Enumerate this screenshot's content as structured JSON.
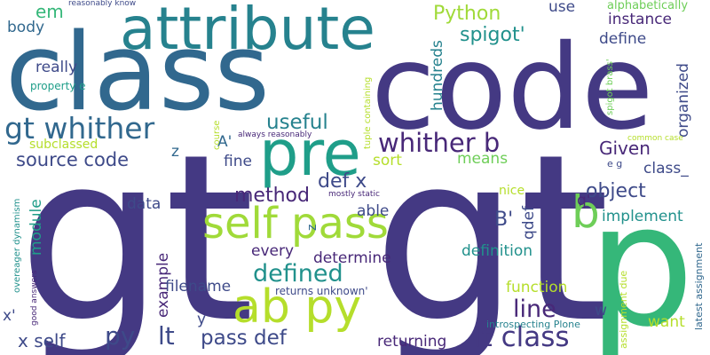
{
  "palette": {
    "dark_purple": "#482878",
    "indigo": "#443983",
    "teal_blue": "#31688e",
    "slate": "#3e4a89",
    "teal": "#26828e",
    "teal_green": "#21918c",
    "sea_green": "#1f9e89",
    "green": "#35b779",
    "bright_green": "#3dbc74",
    "light_green": "#6ece58",
    "lime": "#b5de2b",
    "yellow_green": "#a0da39"
  },
  "words": [
    {
      "text": "gt",
      "color": "#443983"
    },
    {
      "text": "gt",
      "color": "#443983"
    },
    {
      "text": "code",
      "color": "#443983"
    },
    {
      "text": "class",
      "color": "#31688e"
    },
    {
      "text": "p",
      "color": "#35b779"
    },
    {
      "text": "attribute",
      "color": "#26828e"
    },
    {
      "text": "pre",
      "color": "#1f9e89"
    },
    {
      "text": "ab py",
      "color": "#b5de2b"
    },
    {
      "text": "self pass",
      "color": "#a0da39"
    },
    {
      "text": "b",
      "color": "#6ece58"
    },
    {
      "text": "gt whither",
      "color": "#31688e"
    },
    {
      "text": "whither b",
      "color": "#482878"
    },
    {
      "text": "lt class",
      "color": "#443983"
    },
    {
      "text": "line",
      "color": "#482878"
    },
    {
      "text": "source code",
      "color": "#3e4a89"
    },
    {
      "text": "py",
      "color": "#3e4a89"
    },
    {
      "text": "lt",
      "color": "#3e4a89"
    },
    {
      "text": "pass def",
      "color": "#3e4a89"
    },
    {
      "text": "x self",
      "color": "#3e4a89"
    },
    {
      "text": "object",
      "color": "#3e4a89"
    },
    {
      "text": "defined",
      "color": "#21918c"
    },
    {
      "text": "method",
      "color": "#482878"
    },
    {
      "text": "useful",
      "color": "#26828e"
    },
    {
      "text": "def x",
      "color": "#3e4a89"
    },
    {
      "text": "Python",
      "color": "#a0da39"
    },
    {
      "text": "spigot'",
      "color": "#21918c"
    },
    {
      "text": "B'",
      "color": "#3e4a89"
    },
    {
      "text": "Given",
      "color": "#482878"
    },
    {
      "text": "define",
      "color": "#3e4a89"
    },
    {
      "text": "instance",
      "color": "#482878"
    },
    {
      "text": "organized",
      "color": "#3e4a89"
    },
    {
      "text": "em",
      "color": "#35b779"
    },
    {
      "text": "use",
      "color": "#3e4a89"
    },
    {
      "text": "body",
      "color": "#31688e"
    },
    {
      "text": "really",
      "color": "#3e4a89"
    },
    {
      "text": "hundreds",
      "color": "#26828e"
    },
    {
      "text": "sort",
      "color": "#b5de2b"
    },
    {
      "text": "means",
      "color": "#6ece58"
    },
    {
      "text": "fine",
      "color": "#3e4a89"
    },
    {
      "text": "A'",
      "color": "#31688e"
    },
    {
      "text": "z",
      "color": "#31688e"
    },
    {
      "text": "class_",
      "color": "#3e4a89"
    },
    {
      "text": "implement",
      "color": "#21918c"
    },
    {
      "text": "q'",
      "color": "#482878"
    },
    {
      "text": "data",
      "color": "#3e4a89"
    },
    {
      "text": "able",
      "color": "#3e4a89"
    },
    {
      "text": "qdef",
      "color": "#3e4a89"
    },
    {
      "text": "determine",
      "color": "#482878"
    },
    {
      "text": "every",
      "color": "#482878"
    },
    {
      "text": "definition",
      "color": "#21918c"
    },
    {
      "text": "module",
      "color": "#1f9e89"
    },
    {
      "text": "example",
      "color": "#482878"
    },
    {
      "text": "filename",
      "color": "#3e4a89"
    },
    {
      "text": "function",
      "color": "#b5de2b"
    },
    {
      "text": "want",
      "color": "#b5de2b"
    },
    {
      "text": "returning",
      "color": "#482878"
    },
    {
      "text": "y",
      "color": "#3e4a89"
    },
    {
      "text": "x'",
      "color": "#3e4a89"
    },
    {
      "text": "w",
      "color": "#3e4a89"
    },
    {
      "text": "subclassed",
      "color": "#b5de2b"
    },
    {
      "text": "nice",
      "color": "#b5de2b"
    },
    {
      "text": "z",
      "color": "#31688e"
    },
    {
      "text": "alphabetically",
      "color": "#6ece58"
    },
    {
      "text": "property e",
      "color": "#1f9e89"
    },
    {
      "text": "e g",
      "color": "#3e4a89"
    },
    {
      "text": "reasonably know",
      "color": "#3e4a89"
    },
    {
      "text": "tuple containing",
      "color": "#b5de2b"
    },
    {
      "text": "spigot brass'",
      "color": "#6ece58"
    },
    {
      "text": "course",
      "color": "#b5de2b"
    },
    {
      "text": "always reasonably",
      "color": "#482878"
    },
    {
      "text": "mostly static",
      "color": "#482878"
    },
    {
      "text": "common case",
      "color": "#b5de2b"
    },
    {
      "text": "overeager dynamism",
      "color": "#21918c"
    },
    {
      "text": "good answers",
      "color": "#482878"
    },
    {
      "text": "returns unknown'",
      "color": "#3e4a89"
    },
    {
      "text": "introspecting Plone",
      "color": "#26828e"
    },
    {
      "text": "assignment due",
      "color": "#b5de2b"
    },
    {
      "text": "latest assignment",
      "color": "#31688e"
    }
  ]
}
